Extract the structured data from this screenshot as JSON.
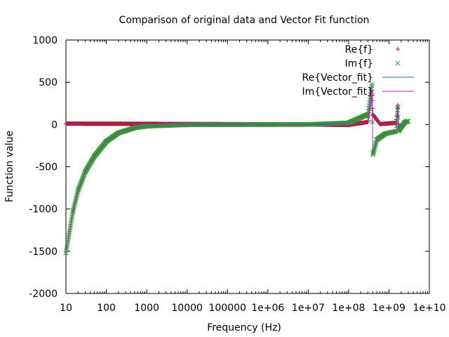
{
  "chart_data": {
    "type": "scatter",
    "title": "Comparison of original data and Vector Fit function",
    "xlabel": "Frequency (Hz)",
    "ylabel": "Function value",
    "xscale": "log",
    "xlim": [
      10,
      10000000000
    ],
    "ylim": [
      -2000,
      1000
    ],
    "x_tick_labels": [
      "10",
      "100",
      "1000",
      "10000",
      "100000",
      "1e+06",
      "1e+07",
      "1e+08",
      "1e+09",
      "1e+10"
    ],
    "y_tick_labels": [
      "1000",
      "500",
      "0",
      "-500",
      "-1000",
      "-1500",
      "-2000"
    ],
    "grid": false,
    "legend_position": "top-right",
    "series": [
      {
        "name": "Re{f}",
        "marker": "plus",
        "color": "#c8102e",
        "description_points": [
          [
            10,
            10
          ],
          [
            1000,
            8
          ],
          [
            100000,
            4
          ],
          [
            10000000,
            0
          ],
          [
            100000000,
            -5
          ],
          [
            300000000,
            30
          ],
          [
            380000000,
            350
          ],
          [
            400000000,
            120
          ],
          [
            600000000,
            5
          ],
          [
            1500000000,
            20
          ],
          [
            1650000000,
            230
          ],
          [
            1750000000,
            -30
          ],
          [
            2500000000,
            10
          ]
        ]
      },
      {
        "name": "Im{f}",
        "marker": "cross",
        "color": "#2ca02c",
        "description_points": [
          [
            10,
            -1520
          ],
          [
            15,
            -1020
          ],
          [
            20,
            -780
          ],
          [
            30,
            -560
          ],
          [
            50,
            -380
          ],
          [
            100,
            -200
          ],
          [
            200,
            -100
          ],
          [
            500,
            -40
          ],
          [
            1000,
            -20
          ],
          [
            10000,
            -4
          ],
          [
            10000000,
            0
          ],
          [
            100000000,
            20
          ],
          [
            300000000,
            120
          ],
          [
            380000000,
            480
          ],
          [
            400000000,
            -360
          ],
          [
            500000000,
            -180
          ],
          [
            800000000,
            -110
          ],
          [
            1500000000,
            -80
          ],
          [
            1650000000,
            200
          ],
          [
            1700000000,
            -80
          ],
          [
            2500000000,
            30
          ],
          [
            3000000000,
            40
          ]
        ]
      },
      {
        "name": "Re{Vector_fit}",
        "marker": "line",
        "color": "#1f6fb4"
      },
      {
        "name": "Im{Vector_fit}",
        "marker": "line",
        "color": "#c020c0"
      }
    ]
  }
}
